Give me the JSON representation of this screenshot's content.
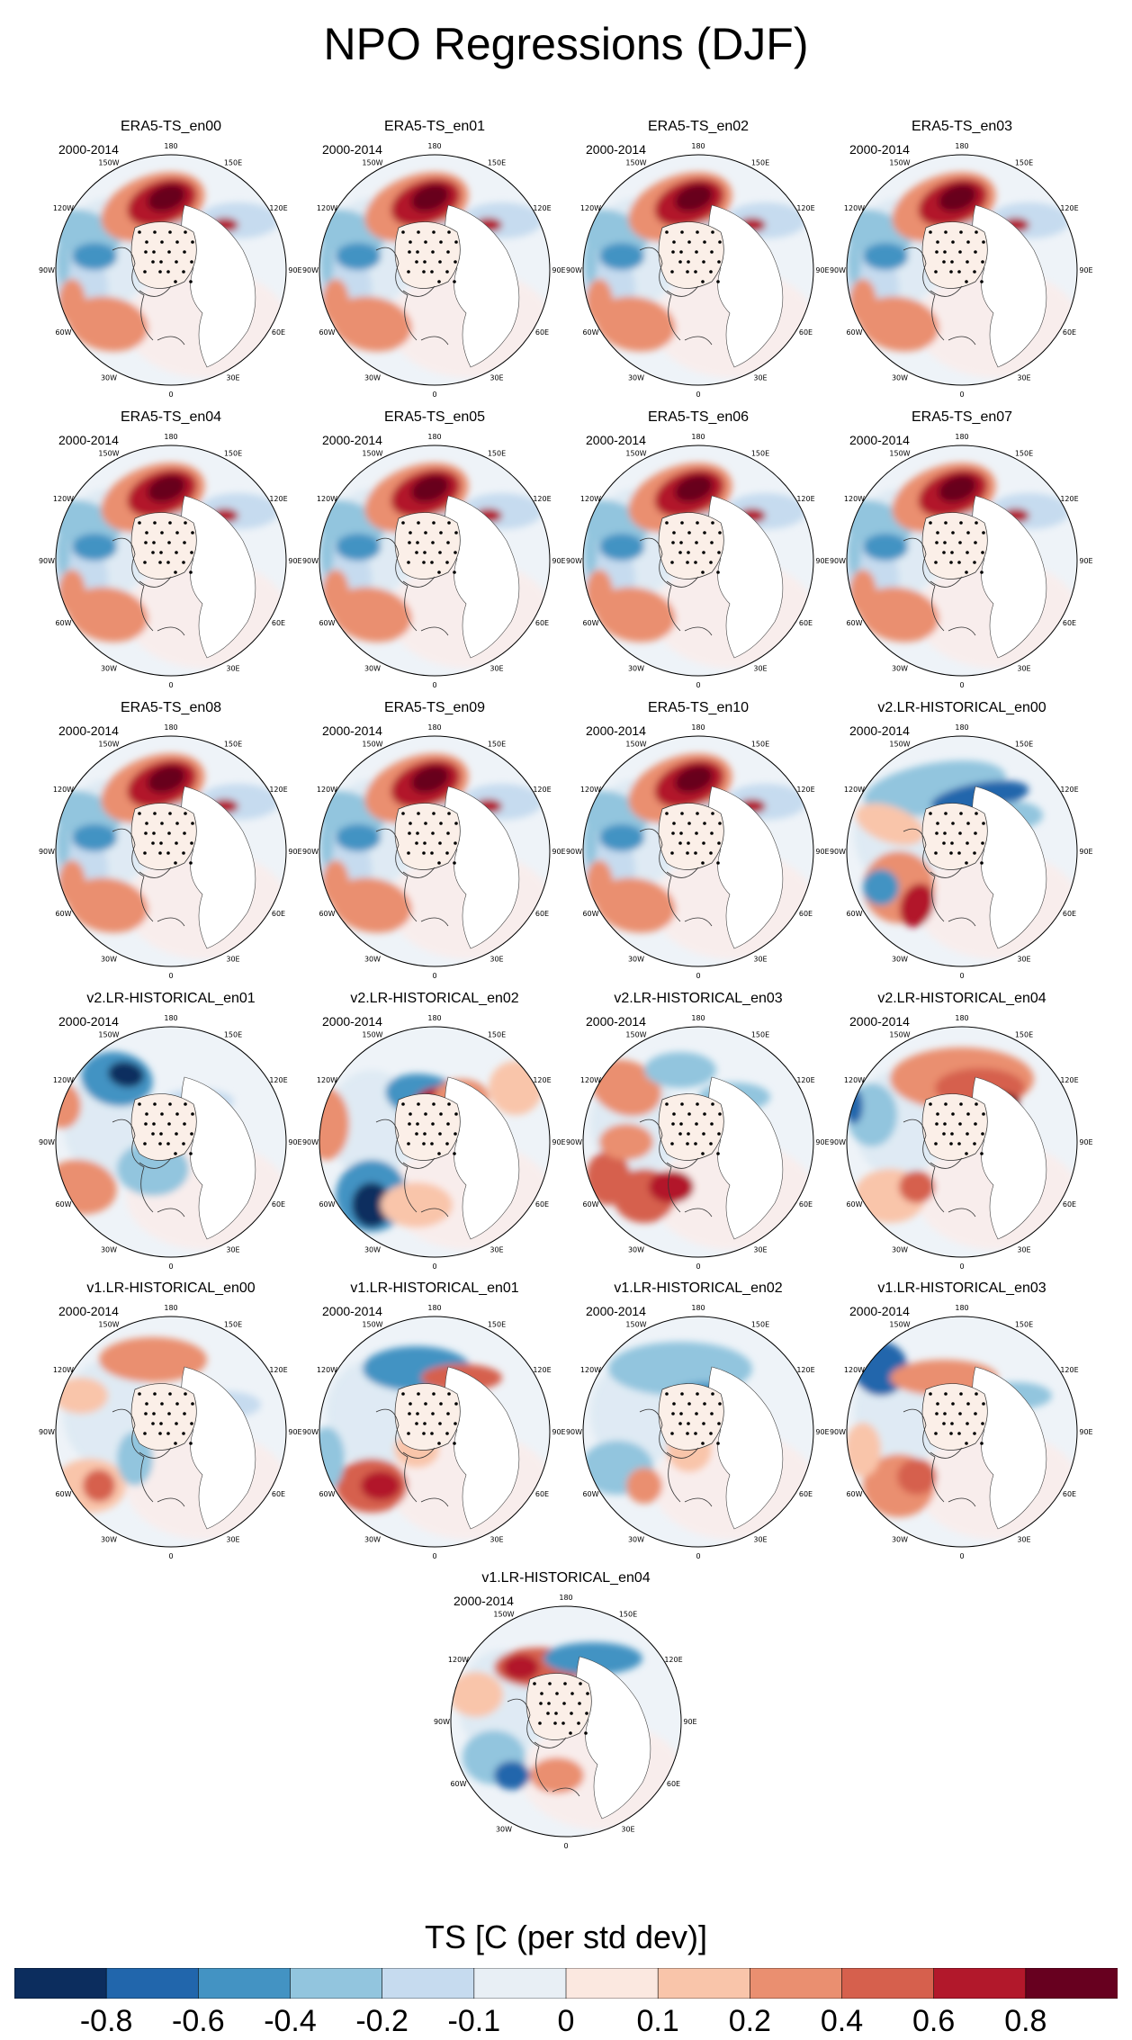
{
  "title": "NPO Regressions (DJF)",
  "panel_period": "2000-2014",
  "lon_labels": [
    "180",
    "150E",
    "120E",
    "90E",
    "60E",
    "30E",
    "0",
    "30W",
    "60W",
    "90W",
    "120W",
    "150W"
  ],
  "panels": [
    {
      "label": "ERA5-TS_en00",
      "pattern": "era"
    },
    {
      "label": "ERA5-TS_en01",
      "pattern": "era"
    },
    {
      "label": "ERA5-TS_en02",
      "pattern": "era"
    },
    {
      "label": "ERA5-TS_en03",
      "pattern": "era"
    },
    {
      "label": "ERA5-TS_en04",
      "pattern": "era"
    },
    {
      "label": "ERA5-TS_en05",
      "pattern": "era"
    },
    {
      "label": "ERA5-TS_en06",
      "pattern": "era"
    },
    {
      "label": "ERA5-TS_en07",
      "pattern": "era"
    },
    {
      "label": "ERA5-TS_en08",
      "pattern": "era"
    },
    {
      "label": "ERA5-TS_en09",
      "pattern": "era"
    },
    {
      "label": "ERA5-TS_en10",
      "pattern": "era"
    },
    {
      "label": "v2.LR-HISTORICAL_en00",
      "pattern": "v2a"
    },
    {
      "label": "v2.LR-HISTORICAL_en01",
      "pattern": "v2b"
    },
    {
      "label": "v2.LR-HISTORICAL_en02",
      "pattern": "v2c"
    },
    {
      "label": "v2.LR-HISTORICAL_en03",
      "pattern": "v2d"
    },
    {
      "label": "v2.LR-HISTORICAL_en04",
      "pattern": "v2e"
    },
    {
      "label": "v1.LR-HISTORICAL_en00",
      "pattern": "v1a"
    },
    {
      "label": "v1.LR-HISTORICAL_en01",
      "pattern": "v1b"
    },
    {
      "label": "v1.LR-HISTORICAL_en02",
      "pattern": "v1c"
    },
    {
      "label": "v1.LR-HISTORICAL_en03",
      "pattern": "v1d"
    },
    {
      "label": "v1.LR-HISTORICAL_en04",
      "pattern": "v1e"
    }
  ],
  "colorbar": {
    "title": "TS [C (per std dev)]",
    "colors": [
      "#0c2d5e",
      "#2166ac",
      "#4393c3",
      "#92c5de",
      "#c6dbef",
      "#e8eff5",
      "#fbe8e0",
      "#f9c5aa",
      "#ea8f70",
      "#d6604d",
      "#b2182b",
      "#67001f"
    ],
    "tick_labels": [
      "-0.8",
      "-0.6",
      "-0.4",
      "-0.2",
      "-0.1",
      "0",
      "0.1",
      "0.2",
      "0.4",
      "0.6",
      "0.8"
    ]
  }
}
